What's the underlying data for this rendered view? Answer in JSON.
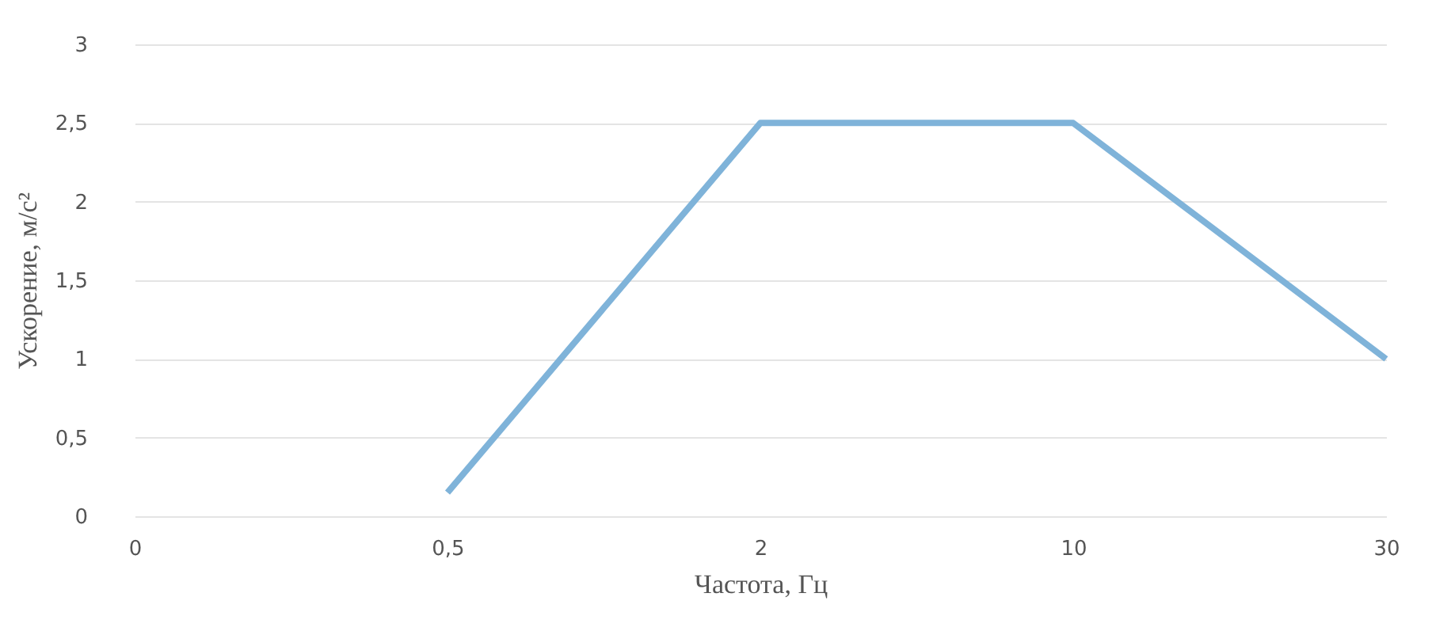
{
  "chart_data": {
    "type": "line",
    "xlabel": "Частота, Гц",
    "ylabel": "Ускорение, м/с²",
    "categories": [
      "0",
      "0,5",
      "2",
      "10",
      "30"
    ],
    "series": [
      {
        "color": "#7fb3d9",
        "values": [
          null,
          0.15,
          2.5,
          2.5,
          1
        ]
      }
    ],
    "ylim": [
      0,
      3
    ],
    "yticks": [
      0,
      {
        "value": 0.5,
        "label": "0,5"
      },
      1,
      {
        "value": 1.5,
        "label": "1,5"
      },
      2,
      {
        "value": 2.5,
        "label": "2,5"
      },
      3
    ],
    "grid": "y",
    "marker": "none"
  }
}
